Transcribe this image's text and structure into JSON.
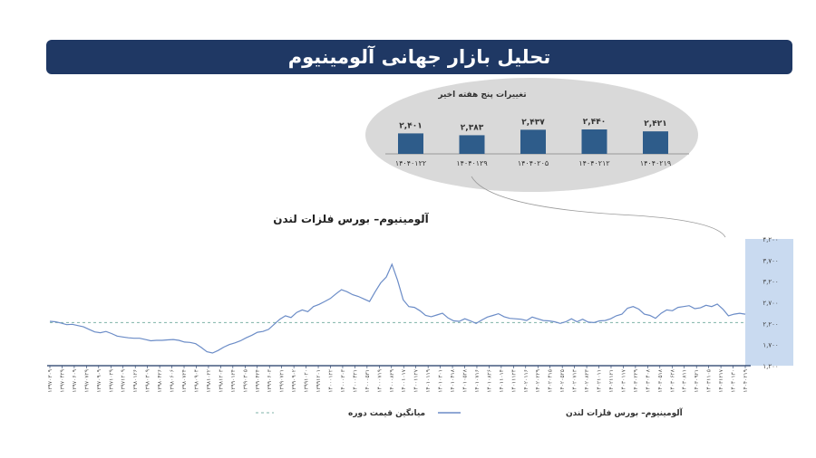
{
  "banner": {
    "title": "تحلیل بازار جهانی آلومینیوم"
  },
  "mini_chart": {
    "title": "تغییرات پنج هفته اخیر",
    "bars": [
      {
        "label": "۱۴۰۴۰۱۲۲",
        "value": 2401,
        "value_text": "۲,۴۰۱"
      },
      {
        "label": "۱۴۰۴۰۱۲۹",
        "value": 2383,
        "value_text": "۲,۳۸۳"
      },
      {
        "label": "۱۴۰۴۰۲۰۵",
        "value": 2437,
        "value_text": "۲,۴۳۷"
      },
      {
        "label": "۱۴۰۴۰۲۱۲",
        "value": 2440,
        "value_text": "۲,۴۴۰"
      },
      {
        "label": "۱۴۰۴۰۲۱۹",
        "value": 2421,
        "value_text": "۲,۴۲۱"
      }
    ],
    "color": "#2e5c8a"
  },
  "chart_data": {
    "type": "line",
    "title": "آلومینیوم– بورس فلزات لندن",
    "ylim": [
      1200,
      4200
    ],
    "y_ticks": [
      {
        "value": 1200,
        "label": "۱,۲۰۰"
      },
      {
        "value": 1700,
        "label": "۱,۷۰۰"
      },
      {
        "value": 2200,
        "label": "۲,۲۰۰"
      },
      {
        "value": 2700,
        "label": "۲,۷۰۰"
      },
      {
        "value": 3200,
        "label": "۳,۲۰۰"
      },
      {
        "value": 3700,
        "label": "۳,۷۰۰"
      },
      {
        "value": 4200,
        "label": "۴,۲۰۰"
      }
    ],
    "x_tick_labels": [
      "۱۳۹۷۰۳۰۹",
      "۱۳۹۷۰۴۲۹",
      "۱۳۹۷۰۶۰۹",
      "۱۳۹۷۰۷۲۹",
      "۱۳۹۷۰۹۰۹",
      "۱۳۹۷۱۰۲۹",
      "۱۳۹۷۱۲۰۹",
      "۱۳۹۸۰۱۲۶",
      "۱۳۹۸۰۳۰۹",
      "۱۳۹۸۰۴۲۶",
      "۱۳۹۸۰۶۰۶",
      "۱۳۹۸۰۷۲۴",
      "۱۳۹۸۰۹۰۴",
      "۱۳۹۸۱۰۲۲",
      "۱۳۹۸۱۲۰۳",
      "۱۳۹۹۰۱۲۴",
      "۱۳۹۹۰۳۰۵",
      "۱۳۹۹۰۴۲۴",
      "۱۳۹۹۰۶۰۳",
      "۱۳۹۹۰۷۲۱",
      "۱۳۹۹۰۹۰۲",
      "۱۳۹۹۱۰۲۰",
      "۱۳۹۹۱۲۰۱",
      "۱۴۰۰۰۱۲۲",
      "۱۴۰۰۰۳۰۳",
      "۱۴۰۰۰۴۲۱",
      "۱۴۰۰۰۵۳۱",
      "۱۴۰۰۰۷۱۹",
      "۱۴۰۰۰۸۲۹",
      "۱۴۰۰۱۰۱۷",
      "۱۴۰۰۱۱۲۷",
      "۱۴۰۱۰۱۱۹",
      "۱۴۰۱۰۳۰۱",
      "۱۴۰۱۰۴۱۸",
      "۱۴۰۱۰۵۲۸",
      "۱۴۰۱۰۷۱۶",
      "۱۴۰۱۰۸۲۶",
      "۱۴۰۱۱۰۱۴",
      "۱۴۰۱۱۱۲۴",
      "۱۴۰۲۰۱۱۶",
      "۱۴۰۲۰۲۲۹",
      "۱۴۰۲۰۴۱۵",
      "۱۴۰۲۰۵۲۵",
      "۱۴۰۲۰۷۱۳",
      "۱۴۰۲۰۸۲۳",
      "۱۴۰۲۱۰۱۱",
      "۱۴۰۲۱۱۲۱",
      "۱۴۰۳۰۱۱۷",
      "۱۴۰۳۰۲۲۹",
      "۱۴۰۳۰۴۰۸",
      "۱۴۰۳۰۵۱۸",
      "۱۴۰۳۰۶۲۸",
      "۱۴۰۳۰۸۱۱",
      "۱۴۰۳۰۹۲۱",
      "۱۴۰۳۱۱۰۵",
      "۱۴۰۳۱۲۱۷",
      "۱۴۰۴۰۱۳۰",
      "۱۴۰۴۰۲۱۹"
    ],
    "average_value": 2220,
    "series": [
      {
        "name": "آلومینیوم– بورس فلزات لندن",
        "color": "#6b8cc7",
        "values": [
          2250,
          2240,
          2210,
          2170,
          2180,
          2150,
          2120,
          2060,
          2000,
          1980,
          2010,
          1960,
          1900,
          1880,
          1860,
          1850,
          1850,
          1820,
          1790,
          1800,
          1800,
          1810,
          1820,
          1800,
          1760,
          1750,
          1720,
          1630,
          1530,
          1500,
          1560,
          1640,
          1700,
          1740,
          1790,
          1860,
          1920,
          1990,
          2010,
          2060,
          2180,
          2300,
          2380,
          2340,
          2460,
          2520,
          2480,
          2600,
          2650,
          2720,
          2790,
          2900,
          3000,
          2950,
          2880,
          2840,
          2780,
          2720,
          2950,
          3160,
          3300,
          3600,
          3220,
          2760,
          2600,
          2580,
          2500,
          2390,
          2360,
          2400,
          2440,
          2330,
          2260,
          2250,
          2310,
          2260,
          2200,
          2280,
          2350,
          2390,
          2430,
          2360,
          2320,
          2310,
          2300,
          2270,
          2350,
          2310,
          2270,
          2260,
          2240,
          2200,
          2240,
          2310,
          2240,
          2300,
          2230,
          2220,
          2260,
          2270,
          2310,
          2380,
          2420,
          2560,
          2600,
          2540,
          2420,
          2390,
          2320,
          2440,
          2520,
          2500,
          2580,
          2600,
          2620,
          2550,
          2570,
          2630,
          2600,
          2660,
          2540,
          2380,
          2420,
          2440,
          2420
        ],
        "x_start_label": "۱۳۹۷۰۳۰۹",
        "x_end_label": "۱۴۰۴۰۲۱۹"
      }
    ],
    "legend": [
      {
        "label": "آلومینیوم– بورس فلزات لندن",
        "style": "solid",
        "color": "#6b8cc7"
      },
      {
        "label": "میانگین قیمت دوره",
        "style": "dashed",
        "color": "#7fb3a8"
      }
    ],
    "highlight_color": "#c9daf0"
  }
}
